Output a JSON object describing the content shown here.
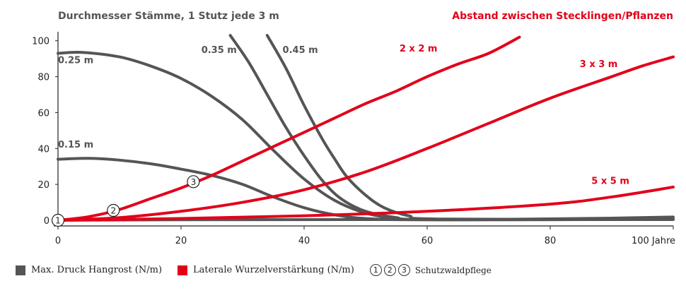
{
  "chart_data": {
    "type": "line",
    "title_left": "Durchmesser Stämme, 1 Stutz jede 3 m",
    "title_right": "Abstand zwischen Stecklingen/Pflanzen",
    "xlim": [
      0,
      100
    ],
    "ylim": [
      0,
      105
    ],
    "x_ticks": [
      "0",
      "20",
      "40",
      "60",
      "80",
      "100 Jahre"
    ],
    "y_ticks": [
      "0",
      "20",
      "40",
      "60",
      "80",
      "100"
    ],
    "grid": false,
    "colors": {
      "gray": "#555555",
      "red": "#e2001a"
    },
    "series": [
      {
        "name": "0.25 m",
        "group": "gray",
        "points": [
          [
            0,
            93
          ],
          [
            4,
            93.5
          ],
          [
            10,
            91
          ],
          [
            15,
            86
          ],
          [
            20,
            79
          ],
          [
            25,
            69
          ],
          [
            30,
            56
          ],
          [
            35,
            39
          ],
          [
            40,
            23
          ],
          [
            45,
            11
          ],
          [
            50,
            4
          ],
          [
            55,
            1
          ],
          [
            60,
            0.3
          ],
          [
            70,
            0.3
          ],
          [
            100,
            0.5
          ]
        ]
      },
      {
        "name": "0.15 m",
        "group": "gray",
        "points": [
          [
            0,
            34
          ],
          [
            5,
            34.5
          ],
          [
            10,
            33.5
          ],
          [
            15,
            31.5
          ],
          [
            20,
            28.5
          ],
          [
            25,
            25
          ],
          [
            30,
            20
          ],
          [
            35,
            13
          ],
          [
            40,
            7
          ],
          [
            45,
            3
          ],
          [
            50,
            1
          ],
          [
            60,
            0.3
          ],
          [
            100,
            0.5
          ]
        ]
      },
      {
        "name": "0.35 m",
        "group": "gray",
        "points": [
          [
            28,
            103
          ],
          [
            31,
            88
          ],
          [
            34,
            70
          ],
          [
            37,
            52
          ],
          [
            40,
            36
          ],
          [
            43,
            22
          ],
          [
            46,
            12
          ],
          [
            50,
            5
          ],
          [
            55,
            1.5
          ],
          [
            60,
            0.4
          ],
          [
            100,
            0.5
          ]
        ]
      },
      {
        "name": "0.45 m",
        "group": "gray",
        "points": [
          [
            34,
            103
          ],
          [
            37,
            85
          ],
          [
            40,
            64
          ],
          [
            43,
            45
          ],
          [
            45,
            34
          ],
          [
            47,
            24
          ],
          [
            50,
            14
          ],
          [
            53,
            7
          ],
          [
            57,
            2.5
          ],
          [
            62,
            0.7
          ],
          [
            100,
            0.5
          ]
        ]
      },
      {
        "name": "max-druck",
        "group": "gray",
        "points": [
          [
            0,
            0
          ],
          [
            20,
            0.3
          ],
          [
            50,
            0.4
          ],
          [
            70,
            0.5
          ],
          [
            80,
            0.8
          ],
          [
            90,
            1.2
          ],
          [
            100,
            1.8
          ]
        ]
      },
      {
        "name": "2 x 2 m",
        "group": "red",
        "points": [
          [
            0,
            0
          ],
          [
            5,
            2
          ],
          [
            10,
            6
          ],
          [
            15,
            12
          ],
          [
            20,
            18
          ],
          [
            25,
            25
          ],
          [
            30,
            33
          ],
          [
            35,
            41
          ],
          [
            40,
            49
          ],
          [
            45,
            57
          ],
          [
            50,
            65
          ],
          [
            55,
            72
          ],
          [
            60,
            80
          ],
          [
            65,
            87
          ],
          [
            70,
            93
          ],
          [
            75,
            102
          ]
        ]
      },
      {
        "name": "3 x 3 m",
        "group": "red",
        "points": [
          [
            0,
            0
          ],
          [
            10,
            1.5
          ],
          [
            20,
            5
          ],
          [
            30,
            10
          ],
          [
            40,
            17
          ],
          [
            50,
            27
          ],
          [
            60,
            40
          ],
          [
            70,
            54
          ],
          [
            80,
            68
          ],
          [
            90,
            80
          ],
          [
            95,
            86
          ],
          [
            100,
            91
          ]
        ]
      },
      {
        "name": "5 x 5 m",
        "group": "red",
        "points": [
          [
            0,
            0
          ],
          [
            20,
            1
          ],
          [
            40,
            2.5
          ],
          [
            60,
            5
          ],
          [
            80,
            9
          ],
          [
            90,
            13
          ],
          [
            100,
            18.5
          ]
        ]
      }
    ],
    "markers": [
      {
        "label": "1",
        "x": 0,
        "y": 0
      },
      {
        "label": "2",
        "x": 9,
        "y": 5.5
      },
      {
        "label": "3",
        "x": 22,
        "y": 21.5
      }
    ],
    "legend": [
      {
        "label": "Max. Druck Hangrost (N/m)",
        "color": "#555555"
      },
      {
        "label": "Laterale Wurzelverstärkung (N/m)",
        "color": "#e2001a"
      }
    ],
    "legend_circles": [
      "1",
      "2",
      "3"
    ],
    "legend_circles_text": "Schutzwaldpflege"
  }
}
